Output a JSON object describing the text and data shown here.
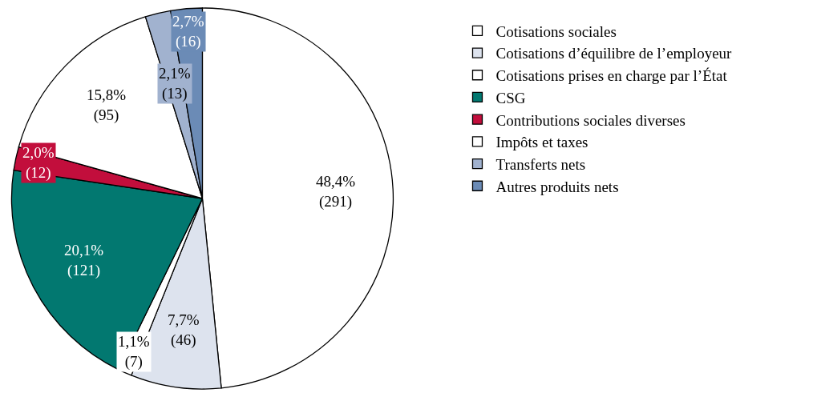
{
  "chart_data": {
    "type": "pie",
    "categories": [
      "Cotisations sociales",
      "Cotisations d’équilibre de l’employeur",
      "Cotisations prises en charge par l’État",
      "CSG",
      "Contributions sociales diverses",
      "Impôts et taxes",
      "Transferts nets",
      "Autres produits nets"
    ],
    "values": [
      291,
      46,
      7,
      121,
      12,
      95,
      13,
      16
    ],
    "value_labels": [
      "48,4%\n(291)",
      "7,7%\n(46)",
      "1,1%\n(7)",
      "20,1%\n(121)",
      "2,0%\n(12)",
      "15,8%\n(95)",
      "2,1%\n(13)",
      "2,7%\n(16)"
    ],
    "colors": [
      "#ffffff",
      "#dde3ee",
      "#ffffff",
      "#027870",
      "#c20e3c",
      "#ffffff",
      "#a1b2cf",
      "#6b8bb6"
    ],
    "legend": "right"
  }
}
